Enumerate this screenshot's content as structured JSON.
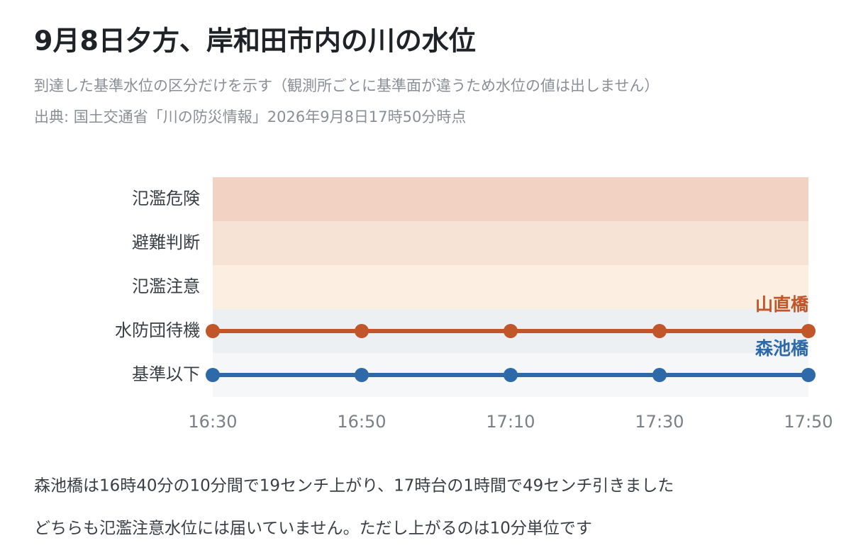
{
  "chart_data": {
    "type": "line",
    "title": "9月8日夕方、岸和田市内の川の水位",
    "subtitle": "到達した基準水位の区分だけを示す（観測所ごとに基準面が違うため水位の値は出しません）",
    "source": "出典: 国土交通省「川の防災情報」2026年9月8日17時50分時点",
    "x": [
      "16:30",
      "16:50",
      "17:10",
      "17:30",
      "17:50"
    ],
    "y_categories": [
      "基準以下",
      "水防団待機",
      "氾濫注意",
      "避難判断",
      "氾濫危険"
    ],
    "band_colors": [
      "#f5f7f9",
      "#edf0f3",
      "#fcefe2",
      "#f6e3d5",
      "#f2d3c3"
    ],
    "series": [
      {
        "name": "山直橋",
        "color": "#c0562a",
        "values": [
          "水防団待機",
          "水防団待機",
          "水防団待機",
          "水防団待機",
          "水防団待機"
        ]
      },
      {
        "name": "森池橋",
        "color": "#2f6aa8",
        "values": [
          "基準以下",
          "基準以下",
          "基準以下",
          "基準以下",
          "基準以下"
        ]
      }
    ],
    "notes": [
      "森池橋は16時40分の10分間で19センチ上がり、17時台の1時間で49センチ引きました",
      "どちらも氾濫注意水位には届いていません。ただし上がるのは10分単位です"
    ]
  }
}
